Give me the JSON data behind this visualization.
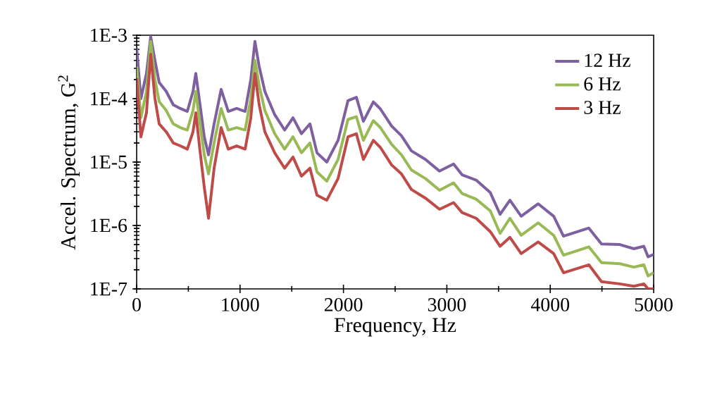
{
  "chart_data": {
    "type": "line",
    "xlabel": "Frequency, Hz",
    "ylabel": "Accel. Spectrum, G$^{2}$",
    "x": [
      0,
      41,
      95,
      136,
      177,
      218,
      286,
      354,
      422,
      490,
      545,
      572,
      613,
      654,
      695,
      749,
      817,
      886,
      967,
      1049,
      1104,
      1144,
      1185,
      1240,
      1335,
      1431,
      1512,
      1594,
      1676,
      1744,
      1839,
      1948,
      2044,
      2125,
      2193,
      2289,
      2357,
      2466,
      2561,
      2657,
      2793,
      2929,
      3065,
      3147,
      3283,
      3420,
      3515,
      3610,
      3719,
      3883,
      4033,
      4128,
      4373,
      4496,
      4673,
      4809,
      4905,
      4946,
      5000
    ],
    "series": [
      {
        "name": "12 Hz",
        "color": "#7e60a0",
        "values": [
          0.00063,
          0.0001,
          0.00025,
          0.00095,
          0.0004,
          0.00018,
          0.00013,
          8e-05,
          7e-05,
          6.3e-05,
          0.00013,
          0.00025,
          8e-05,
          2.5e-05,
          1.3e-05,
          4e-05,
          0.00014,
          6.3e-05,
          7e-05,
          6.3e-05,
          0.0002,
          0.0008,
          0.00032,
          0.00013,
          5.6e-05,
          3.2e-05,
          5e-05,
          2.8e-05,
          4e-05,
          1.4e-05,
          1e-05,
          2.2e-05,
          9.3e-05,
          0.000105,
          4.4e-05,
          8.9e-05,
          6.9e-05,
          3.7e-05,
          2.6e-05,
          1.5e-05,
          1.1e-05,
          7.2e-06,
          9.3e-06,
          6.3e-06,
          5.2e-06,
          3.3e-06,
          1.5e-06,
          2.5e-06,
          1.4e-06,
          2.2e-06,
          1.4e-06,
          6.8e-07,
          9.1e-07,
          5.1e-07,
          5e-07,
          4.3e-07,
          4.7e-07,
          3.2e-07,
          3.5e-07
        ]
      },
      {
        "name": "6 Hz",
        "color": "#98b954",
        "values": [
          0.00032,
          5e-05,
          0.00013,
          0.0008,
          0.0002,
          9e-05,
          6.5e-05,
          4e-05,
          3.5e-05,
          3.2e-05,
          6.5e-05,
          0.00013,
          4e-05,
          1.3e-05,
          6.5e-06,
          2e-05,
          7e-05,
          3.2e-05,
          3.5e-05,
          3.2e-05,
          0.0001,
          0.0004,
          0.00016,
          6.5e-05,
          2.8e-05,
          1.6e-05,
          2.5e-05,
          1.4e-05,
          2e-05,
          7e-06,
          5e-06,
          1.1e-05,
          4.7e-05,
          5.2e-05,
          2.2e-05,
          4.5e-05,
          3.5e-05,
          1.9e-05,
          1.3e-05,
          7.5e-06,
          5.5e-06,
          3.6e-06,
          4.7e-06,
          3.2e-06,
          2.6e-06,
          1.7e-06,
          7.5e-07,
          1.3e-06,
          7e-07,
          1.1e-06,
          7e-07,
          3.4e-07,
          4.6e-07,
          2.6e-07,
          2.5e-07,
          2.2e-07,
          2.4e-07,
          1.6e-07,
          1.8e-07
        ]
      },
      {
        "name": "3 Hz",
        "color": "#be4b48",
        "values": [
          0.00021,
          2.5e-05,
          6e-05,
          0.0005,
          0.0001,
          4e-05,
          3e-05,
          2e-05,
          1.8e-05,
          1.6e-05,
          3e-05,
          6e-05,
          1.5e-05,
          4e-06,
          1.3e-06,
          8e-06,
          3.5e-05,
          1.6e-05,
          1.8e-05,
          1.6e-05,
          5e-05,
          0.00025,
          8e-05,
          3e-05,
          1.4e-05,
          8e-06,
          1.2e-05,
          6e-06,
          8e-06,
          3e-06,
          2.5e-06,
          5.5e-06,
          2.5e-05,
          2.8e-05,
          1.1e-05,
          2.2e-05,
          1.7e-05,
          9e-06,
          6.5e-06,
          3.7e-06,
          2.7e-06,
          1.8e-06,
          2.3e-06,
          1.6e-06,
          1.3e-06,
          8e-07,
          4.7e-07,
          6.5e-07,
          3.6e-07,
          5.5e-07,
          3.6e-07,
          1.8e-07,
          2.4e-07,
          1.3e-07,
          1.2e-07,
          1.1e-07,
          1.2e-07,
          1e-07,
          1e-07
        ]
      }
    ],
    "xlim": [
      0,
      5000
    ],
    "xticks": [
      0,
      {
        "value": 500,
        "label": null
      },
      1000,
      {
        "value": 1500,
        "label": null
      },
      2000,
      {
        "value": 2500,
        "label": null
      },
      3000,
      {
        "value": 3500,
        "label": null
      },
      4000,
      {
        "value": 4500,
        "label": null
      },
      5000
    ],
    "ylim": [
      1e-07,
      0.001
    ],
    "yticks": [
      {
        "value": 1e-07,
        "label": "1E-7"
      },
      {
        "value": 1e-06,
        "label": "1E-6"
      },
      {
        "value": 1e-05,
        "label": "1E-5"
      },
      {
        "value": 0.0001,
        "label": "1E-4"
      },
      {
        "value": 0.001,
        "label": "1E-3"
      }
    ],
    "log": "y",
    "grid": false,
    "legend": "top right",
    "marker": "none",
    "line_style": "solid"
  }
}
